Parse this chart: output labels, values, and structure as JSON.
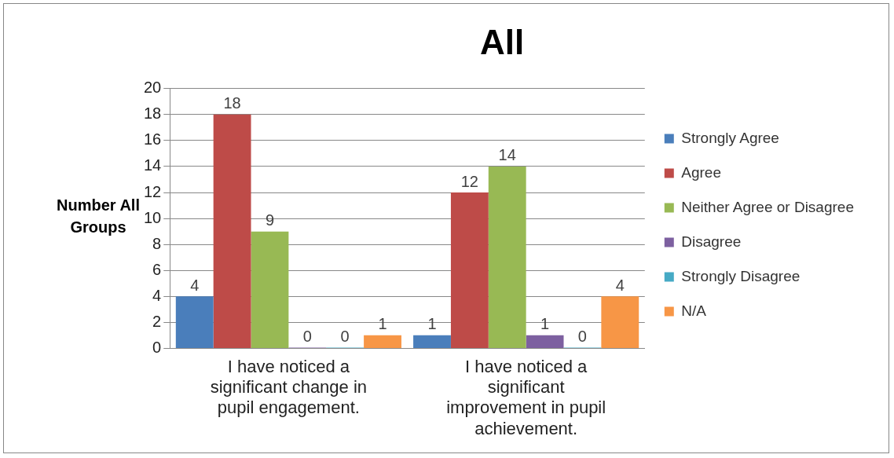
{
  "chart_data": {
    "type": "bar",
    "title": "All",
    "ylabel": "Number All Groups",
    "categories": [
      "I have noticed a significant change in pupil engagement.",
      "I have noticed a significant improvement in pupil achievement."
    ],
    "series": [
      {
        "name": "Strongly Agree",
        "color": "#4a7ebb",
        "values": [
          4,
          1
        ]
      },
      {
        "name": "Agree",
        "color": "#be4b48",
        "values": [
          18,
          12
        ]
      },
      {
        "name": "Neither Agree or Disagree",
        "color": "#98b954",
        "values": [
          9,
          14
        ]
      },
      {
        "name": "Disagree",
        "color": "#7d60a0",
        "values": [
          0,
          1
        ]
      },
      {
        "name": "Strongly Disagree",
        "color": "#46aac5",
        "values": [
          0,
          0
        ]
      },
      {
        "name": "N/A",
        "color": "#f79646",
        "values": [
          1,
          4
        ]
      }
    ],
    "ylim": [
      0,
      20
    ],
    "yticks": [
      0,
      2,
      4,
      6,
      8,
      10,
      12,
      14,
      16,
      18,
      20
    ],
    "grid": "y",
    "legend": "right",
    "data_labels": true
  }
}
